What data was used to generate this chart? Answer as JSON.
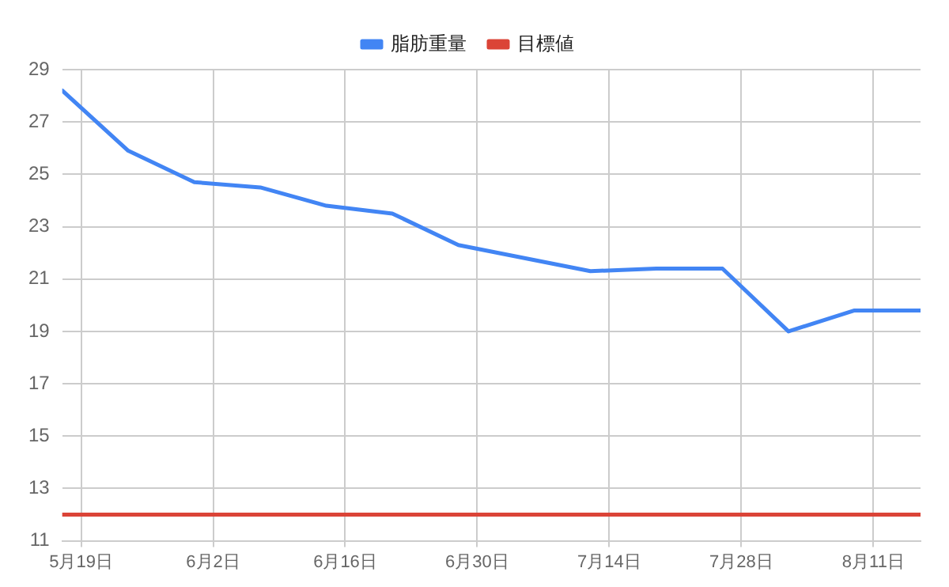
{
  "chart_data": {
    "type": "line",
    "x": [
      "--05-17",
      "--05-24",
      "--05-31",
      "--06-07",
      "--06-14",
      "--06-21",
      "--06-28",
      "--07-12",
      "--07-19",
      "--07-26",
      "--08-02",
      "--08-09",
      "--08-16"
    ],
    "series": [
      {
        "name": "脂肪重量",
        "color": "#4285f4",
        "values": [
          28.2,
          25.9,
          24.7,
          24.5,
          23.8,
          23.5,
          22.3,
          21.3,
          21.4,
          21.4,
          19.0,
          19.8,
          19.8
        ]
      },
      {
        "name": "目標値",
        "color": "#db4437",
        "x": [
          "--05-17",
          "--08-16"
        ],
        "values": [
          12,
          12
        ]
      }
    ],
    "xlim": [
      "--05-17",
      "--08-16"
    ],
    "xticks": [
      {
        "value": "--05-19",
        "label": "5月19日"
      },
      {
        "value": "--06-02",
        "label": "6月2日"
      },
      {
        "value": "--06-16",
        "label": "6月16日"
      },
      {
        "value": "--06-30",
        "label": "6月30日"
      },
      {
        "value": "--07-14",
        "label": "7月14日"
      },
      {
        "value": "--07-28",
        "label": "7月28日"
      },
      {
        "value": "--08-11",
        "label": "8月11日"
      }
    ],
    "ylim": [
      11,
      29
    ],
    "yticks": [
      11,
      13,
      15,
      17,
      19,
      21,
      23,
      25,
      27,
      29
    ],
    "grid": true,
    "legend": "top",
    "marker": "none",
    "line_style": "solid"
  }
}
